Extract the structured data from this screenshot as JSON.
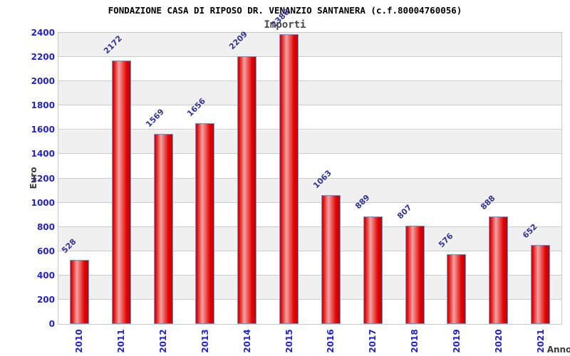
{
  "chart_data": {
    "type": "bar",
    "title": "FONDAZIONE CASA DI RIPOSO DR. VENANZIO SANTANERA (c.f.80004760056)",
    "subtitle": "Importi",
    "xlabel": "Anno",
    "ylabel": "Euro",
    "categories": [
      "2010",
      "2011",
      "2012",
      "2013",
      "2014",
      "2015",
      "2016",
      "2017",
      "2018",
      "2019",
      "2020",
      "2021"
    ],
    "values": [
      528,
      2172,
      1569,
      1656,
      2209,
      2386,
      1063,
      889,
      807,
      576,
      888,
      652
    ],
    "ylim": [
      0,
      2400
    ],
    "ytick_step": 200,
    "grid": true,
    "legend_position": "none",
    "colors": {
      "band_gray": "#f0f0f0",
      "band_white": "#ffffff",
      "gridline": "#cccccc",
      "plot_border": "#c8c8c8",
      "bar_edge": "#55a0e6",
      "bar_red_dark": "#c60000",
      "bar_red": "#e00404",
      "bar_highlight": "#f2a2a2",
      "tick_label_blue": "#2222cc",
      "value_label_navy": "#333399",
      "axis_title_gray": "#3d3d3d",
      "title_black": "#000000"
    }
  }
}
